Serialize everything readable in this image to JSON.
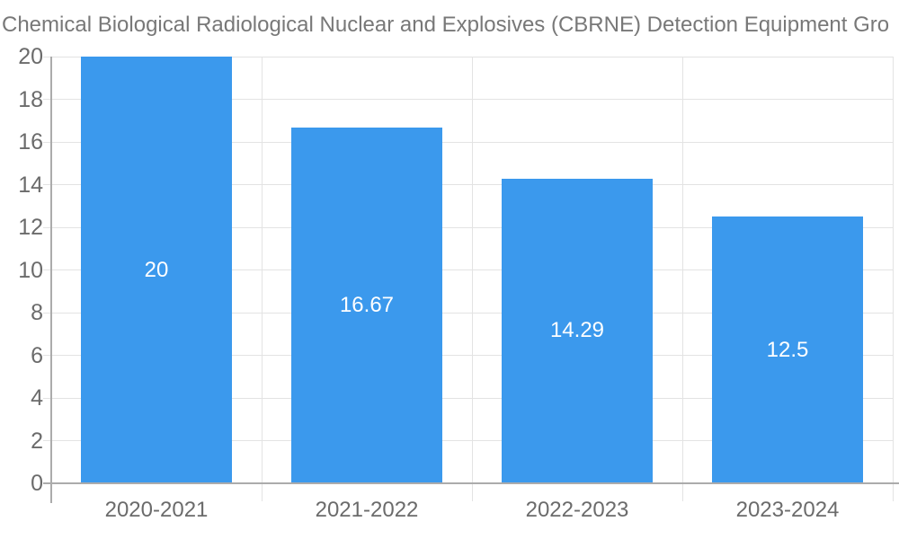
{
  "chart_data": {
    "type": "bar",
    "title": "Chemical Biological Radiological Nuclear and Explosives (CBRNE) Detection Equipment Gro",
    "categories": [
      "2020-2021",
      "2021-2022",
      "2022-2023",
      "2023-2024"
    ],
    "values": [
      20,
      16.67,
      14.29,
      12.5
    ],
    "bar_labels": [
      "20",
      "16.67",
      "14.29",
      "12.5"
    ],
    "xlabel": "",
    "ylabel": "",
    "ylim": [
      0,
      20
    ],
    "ytick_step": 2,
    "yticks": [
      0,
      2,
      4,
      6,
      8,
      10,
      12,
      14,
      16,
      18,
      20
    ],
    "grid": true,
    "legend": false,
    "layout_hints": {
      "bar_label_position": "inside-center",
      "title_alignment": "left-clipped",
      "legend_position": "none"
    },
    "colors": {
      "bar": "#3B99ED",
      "bar_label": "#FFFFFF",
      "grid_line": "#E3E3E3",
      "axis_line": "#ABABAB",
      "title_text": "#787878",
      "tick_text": "#6B6B6B",
      "background": "#FFFFFF"
    }
  }
}
